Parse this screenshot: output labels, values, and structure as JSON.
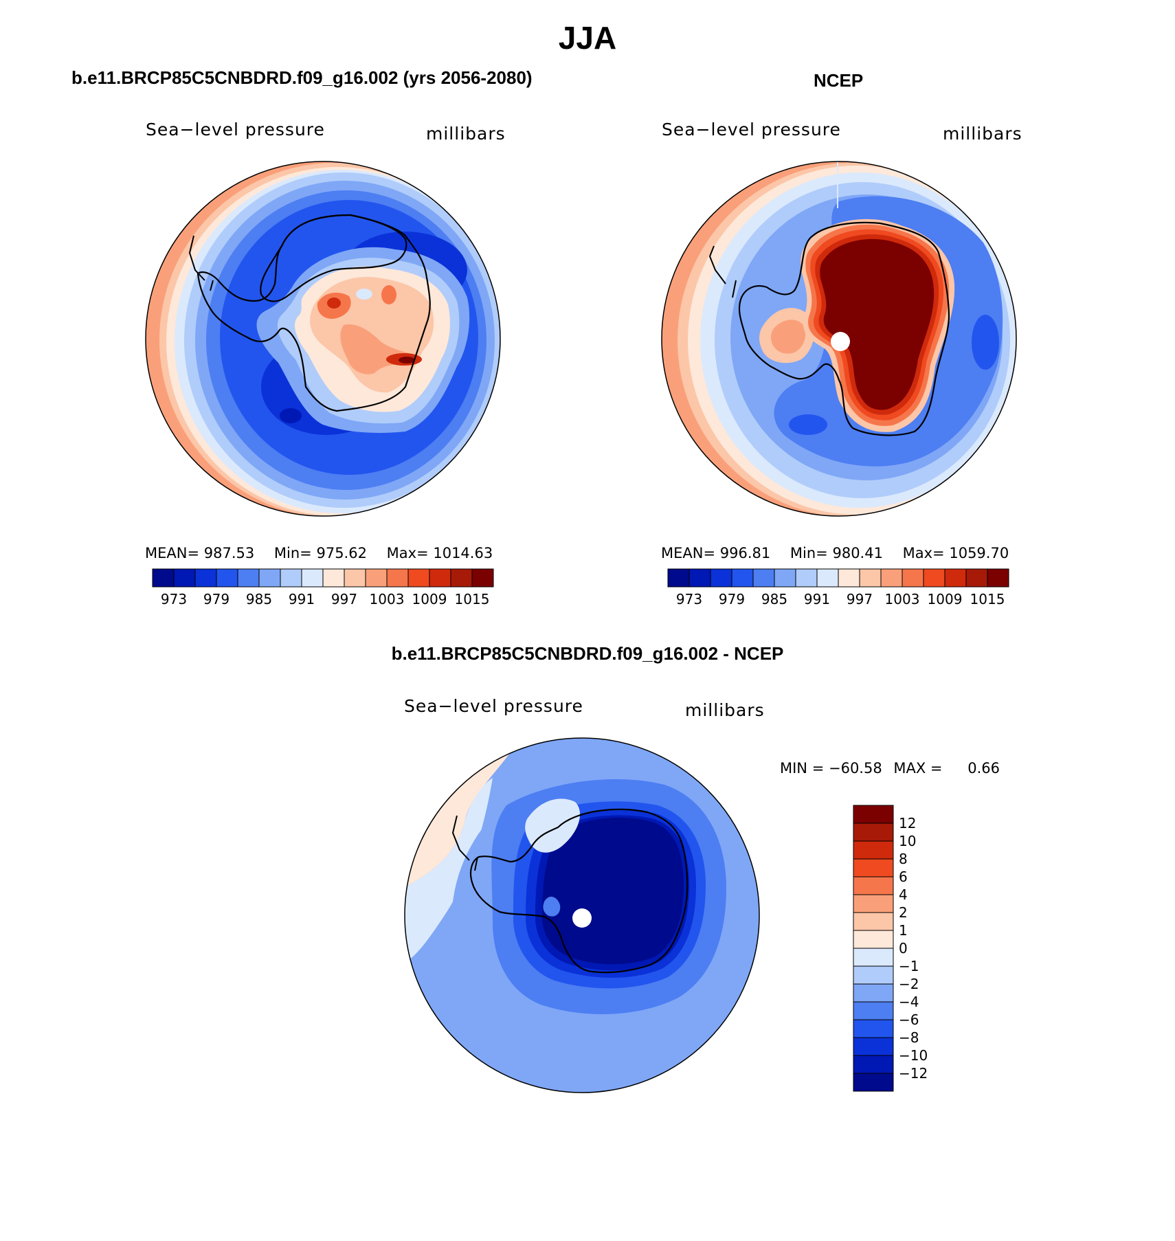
{
  "title": "JJA",
  "panels": [
    {
      "title": "b.e11.BRCP85C5CNBDRD.f09_g16.002 (yrs 2056-2080)",
      "variable": "Sea−level pressure",
      "units": "millibars",
      "stats": {
        "mean_label": "MEAN=",
        "mean": "987.53",
        "min_label": "Min=",
        "min": "975.62",
        "max_label": "Max=",
        "max": "1014.63"
      },
      "colorbar_ticks": [
        "973",
        "979",
        "985",
        "991",
        "997",
        "1003",
        "1009",
        "1015"
      ]
    },
    {
      "title": "NCEP",
      "variable": "Sea−level pressure",
      "units": "millibars",
      "stats": {
        "mean_label": "MEAN=",
        "mean": "996.81",
        "min_label": "Min=",
        "min": "980.41",
        "max_label": "Max=",
        "max": "1059.70"
      },
      "colorbar_ticks": [
        "973",
        "979",
        "985",
        "991",
        "997",
        "1003",
        "1009",
        "1015"
      ]
    },
    {
      "title": "b.e11.BRCP85C5CNBDRD.f09_g16.002 - NCEP",
      "variable": "Sea−level pressure",
      "units": "millibars",
      "stats": {
        "min_label": "MIN =",
        "min": "−60.58",
        "max_label": "MAX =",
        "max": "0.66"
      },
      "colorbar_ticks": [
        "12",
        "10",
        "8",
        "6",
        "4",
        "2",
        "1",
        "0",
        "−1",
        "−2",
        "−4",
        "−6",
        "−8",
        "−10",
        "−12"
      ]
    }
  ],
  "colors": {
    "abs_scale": [
      "#000a8c",
      "#0018b4",
      "#0a32d8",
      "#2255ee",
      "#4d7ef2",
      "#7fa7f6",
      "#b0ccfa",
      "#dbe9fd",
      "#fde8d9",
      "#fcc6a8",
      "#f9a07a",
      "#f6764c",
      "#ef4a20",
      "#d02a0c",
      "#a71a08",
      "#7b0000"
    ],
    "diff_scale": [
      "#7b0000",
      "#a71a08",
      "#d02a0c",
      "#ef4a20",
      "#f6764c",
      "#f9a07a",
      "#fcc6a8",
      "#fde8d9",
      "#dbe9fd",
      "#b0ccfa",
      "#7fa7f6",
      "#4d7ef2",
      "#2255ee",
      "#0a32d8",
      "#0018b4",
      "#000a8c"
    ]
  }
}
